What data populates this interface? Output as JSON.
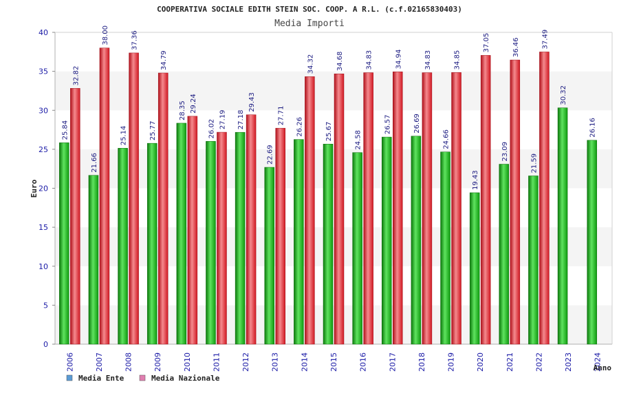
{
  "chart_data": {
    "type": "bar",
    "title": "COOPERATIVA SOCIALE EDITH STEIN SOC. COOP. A R.L. (c.f.02165830403)",
    "subtitle": "Media Importi",
    "ylabel": "Euro",
    "xlabel": "Anno",
    "ylim": [
      0,
      40
    ],
    "yticks": [
      0,
      5,
      10,
      15,
      20,
      25,
      30,
      35,
      40
    ],
    "grid": "horizontal-bands",
    "legend_position": "bottom-left",
    "categories": [
      "2006",
      "2007",
      "2008",
      "2009",
      "2010",
      "2011",
      "2012",
      "2013",
      "2014",
      "2015",
      "2016",
      "2017",
      "2018",
      "2019",
      "2020",
      "2021",
      "2022",
      "2023",
      "2024"
    ],
    "series": [
      {
        "name": "Media Ente",
        "legend_color": "#5b9bd5",
        "bar_color": "#16b516",
        "values": [
          25.84,
          21.66,
          25.14,
          25.77,
          28.35,
          26.02,
          27.18,
          22.69,
          26.26,
          25.67,
          24.58,
          26.57,
          26.69,
          24.66,
          19.43,
          23.09,
          21.59,
          30.32,
          26.16
        ],
        "labels": [
          "25.84",
          "21.66",
          "25.14",
          "25.77",
          "28.35",
          "26.02",
          "27.18",
          "22.69",
          "26.26",
          "25.67",
          "24.58",
          "26.57",
          "26.69",
          "24.66",
          "19.43",
          "23.09",
          "21.59",
          "30.32",
          "26.16"
        ]
      },
      {
        "name": "Media Nazionale",
        "legend_color": "#e07fb0",
        "bar_color": "#e8202a",
        "values": [
          32.82,
          38.0,
          37.36,
          34.79,
          29.24,
          27.19,
          29.43,
          27.71,
          34.32,
          34.68,
          34.83,
          34.94,
          34.83,
          34.85,
          37.05,
          36.46,
          37.49,
          null,
          null
        ],
        "labels": [
          "32.82",
          "38.00",
          "37.36",
          "34.79",
          "29.24",
          "27.19",
          "29.43",
          "27.71",
          "34.32",
          "34.68",
          "34.83",
          "34.94",
          "34.83",
          "34.85",
          "37.05",
          "36.46",
          "37.49",
          null,
          null
        ]
      }
    ]
  }
}
